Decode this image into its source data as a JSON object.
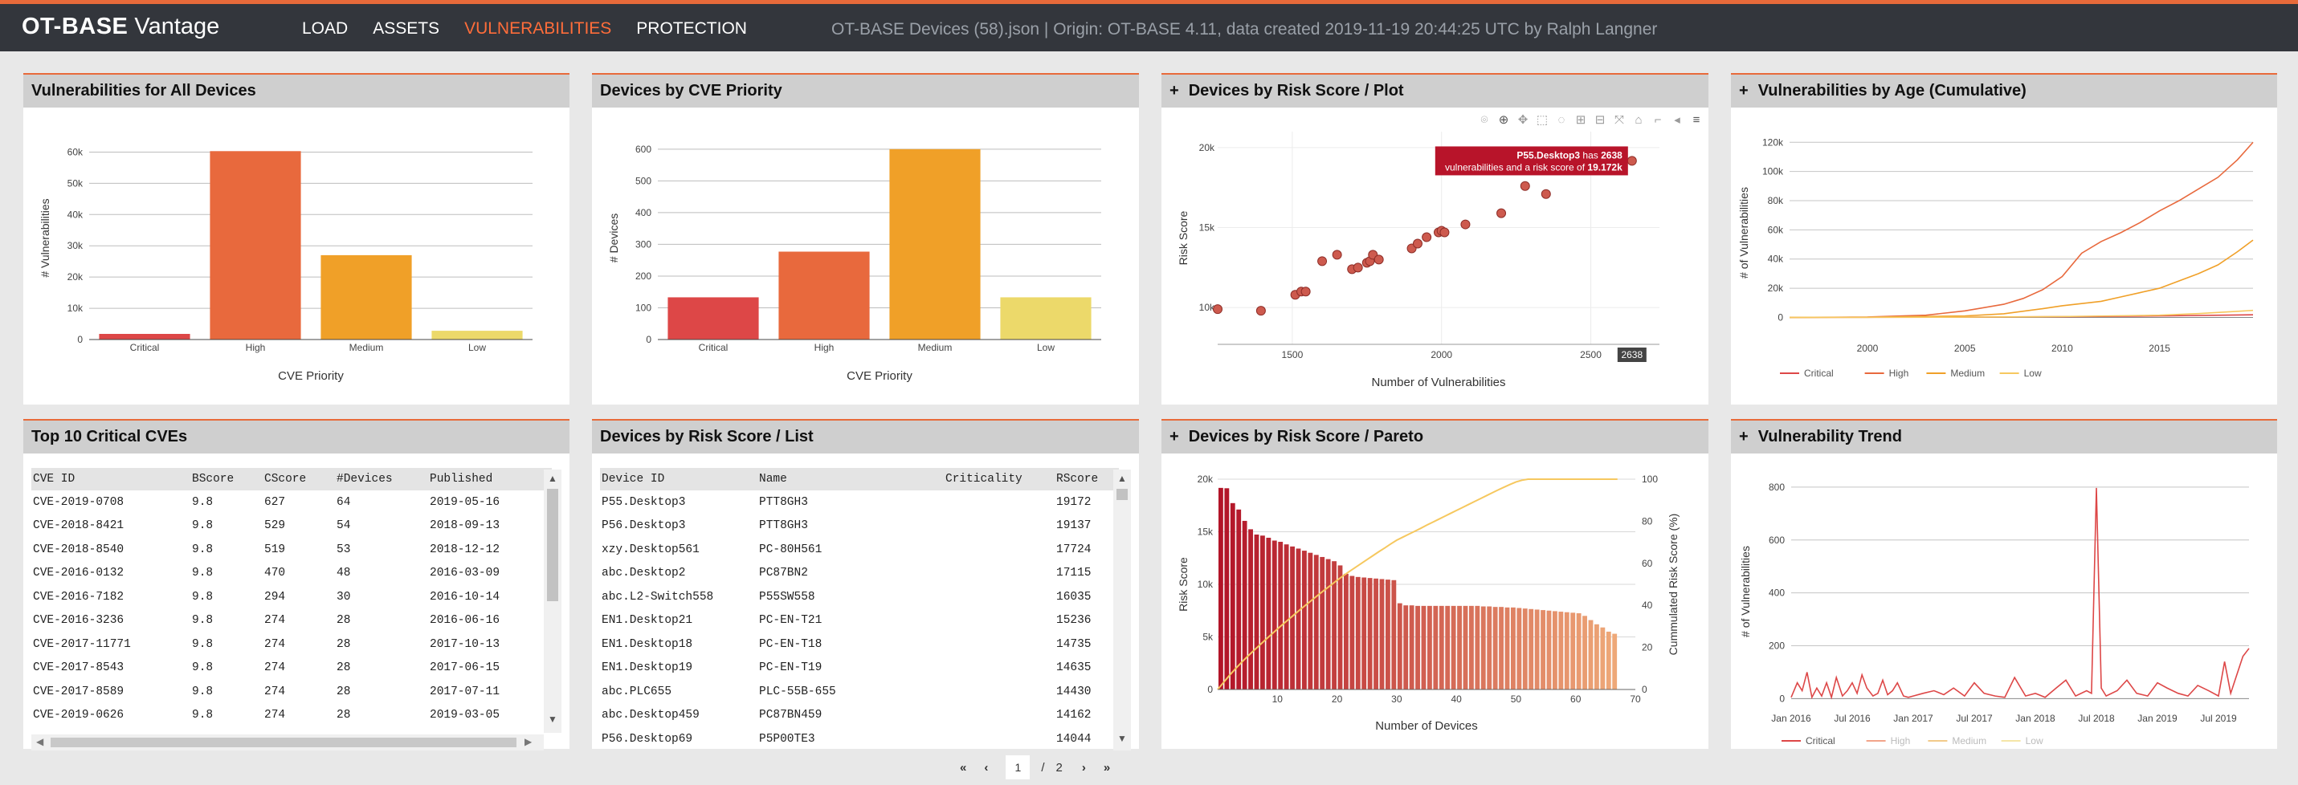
{
  "header": {
    "brand_bold": "OT-BASE",
    "brand_light": "Vantage",
    "nav": [
      {
        "label": "LOAD",
        "active": false
      },
      {
        "label": "ASSETS",
        "active": false
      },
      {
        "label": "VULNERABILITIES",
        "active": true
      },
      {
        "label": "PROTECTION",
        "active": false
      }
    ],
    "info": "OT-BASE Devices (58).json | Origin: OT-BASE 4.11, data created 2019-11-19 20:44:25 UTC by Ralph Langner"
  },
  "colors": {
    "accent": "#e86a3a",
    "critical": "#dd4747",
    "high": "#e8693d",
    "medium": "#f0a028",
    "low": "#ecd96a",
    "pareto_line": "#f6c85f"
  },
  "panels": {
    "vuln_all": {
      "title": "Vulnerabilities for All Devices",
      "chart_data": {
        "type": "bar",
        "categories": [
          "Critical",
          "High",
          "Medium",
          "Low"
        ],
        "values": [
          1800,
          60300,
          27000,
          2800
        ],
        "xlabel": "CVE Priority",
        "ylabel": "# Vulnerabilities",
        "ylim": [
          0,
          65000
        ],
        "yticks": [
          0,
          10000,
          20000,
          30000,
          40000,
          50000,
          60000
        ],
        "ytick_labels": [
          "0",
          "10k",
          "20k",
          "30k",
          "40k",
          "50k",
          "60k"
        ]
      }
    },
    "dev_cve": {
      "title": "Devices by CVE Priority",
      "chart_data": {
        "type": "bar",
        "categories": [
          "Critical",
          "High",
          "Medium",
          "Low"
        ],
        "values": [
          133,
          277,
          600,
          133
        ],
        "xlabel": "CVE Priority",
        "ylabel": "# Devices",
        "ylim": [
          0,
          640
        ],
        "yticks": [
          0,
          100,
          200,
          300,
          400,
          500,
          600
        ],
        "ytick_labels": [
          "0",
          "100",
          "200",
          "300",
          "400",
          "500",
          "600"
        ]
      }
    },
    "risk_plot": {
      "title": "Devices by Risk Score / Plot",
      "tooltip": {
        "device": "P55.Desktop3",
        "mid": "has",
        "count": "2638",
        "line2_pre": "vulnerabilities and a risk score of",
        "score": "19.172k",
        "x_label": "2638"
      },
      "chart_data": {
        "type": "scatter",
        "x": [
          1250,
          1395,
          1510,
          1530,
          1545,
          1600,
          1650,
          1700,
          1720,
          1750,
          1760,
          1770,
          1790,
          1900,
          1920,
          1950,
          1990,
          2000,
          2010,
          2080,
          2200,
          2280,
          2350,
          2638
        ],
        "y": [
          9900,
          9800,
          10800,
          11000,
          11000,
          12900,
          13300,
          12400,
          12500,
          12800,
          12900,
          13300,
          13000,
          13700,
          14000,
          14400,
          14700,
          14800,
          14700,
          15200,
          15900,
          17600,
          17100,
          19172
        ],
        "xlabel": "Number of Vulnerabilities",
        "ylabel": "Risk Score",
        "xlim": [
          1250,
          2730
        ],
        "ylim": [
          7700,
          21000
        ],
        "xticks": [
          1500,
          2000,
          2500
        ],
        "yticks": [
          10000,
          15000,
          20000
        ],
        "ytick_labels": [
          "10k",
          "15k",
          "20k"
        ]
      }
    },
    "vuln_age": {
      "title": "Vulnerabilities by Age (Cumulative)",
      "chart_data": {
        "type": "line",
        "xlabel": "",
        "ylabel": "# of Vulnerabilities",
        "xlim": [
          1996,
          2019.8
        ],
        "ylim": [
          -8000,
          124000
        ],
        "xticks": [
          2000,
          2005,
          2010,
          2015
        ],
        "yticks": [
          0,
          20000,
          40000,
          60000,
          80000,
          100000,
          120000
        ],
        "ytick_labels": [
          "0",
          "20k",
          "40k",
          "60k",
          "80k",
          "100k",
          "120k"
        ],
        "series": [
          {
            "name": "Critical",
            "x": [
              1996,
              2005,
              2010,
              2015,
              2019.8
            ],
            "y": [
              0,
              200,
              500,
              1000,
              1800
            ]
          },
          {
            "name": "High",
            "x": [
              1996,
              2000,
              2003,
              2005,
              2007,
              2008,
              2009,
              2010,
              2011,
              2012,
              2013,
              2014,
              2015,
              2016,
              2017,
              2018,
              2019,
              2019.8
            ],
            "y": [
              0,
              300,
              1500,
              4500,
              9000,
              13000,
              19000,
              28000,
              44000,
              52000,
              58000,
              65000,
              73000,
              80000,
              88000,
              96000,
              108000,
              120000
            ]
          },
          {
            "name": "Medium",
            "x": [
              1996,
              2000,
              2005,
              2007,
              2009,
              2010,
              2012,
              2013,
              2014,
              2015,
              2016,
              2017,
              2018,
              2019,
              2019.8
            ],
            "y": [
              0,
              100,
              1000,
              2500,
              6000,
              8000,
              11000,
              14000,
              17000,
              20000,
              25000,
              30000,
              36000,
              45000,
              53000
            ]
          },
          {
            "name": "Low",
            "x": [
              1996,
              2005,
              2010,
              2015,
              2017,
              2019.8
            ],
            "y": [
              0,
              200,
              600,
              1500,
              2600,
              4800
            ]
          }
        ],
        "legend_position": "bottom"
      }
    },
    "top_cves": {
      "title": "Top 10 Critical CVEs",
      "columns": [
        "CVE ID",
        "BScore",
        "CScore",
        "#Devices",
        "Published"
      ],
      "rows": [
        [
          "CVE-2019-0708",
          "9.8",
          "627",
          "64",
          "2019-05-16"
        ],
        [
          "CVE-2018-8421",
          "9.8",
          "529",
          "54",
          "2018-09-13"
        ],
        [
          "CVE-2018-8540",
          "9.8",
          "519",
          "53",
          "2018-12-12"
        ],
        [
          "CVE-2016-0132",
          "9.8",
          "470",
          "48",
          "2016-03-09"
        ],
        [
          "CVE-2016-7182",
          "9.8",
          "294",
          "30",
          "2016-10-14"
        ],
        [
          "CVE-2016-3236",
          "9.8",
          "274",
          "28",
          "2016-06-16"
        ],
        [
          "CVE-2017-11771",
          "9.8",
          "274",
          "28",
          "2017-10-13"
        ],
        [
          "CVE-2017-8543",
          "9.8",
          "274",
          "28",
          "2017-06-15"
        ],
        [
          "CVE-2017-8589",
          "9.8",
          "274",
          "28",
          "2017-07-11"
        ],
        [
          "CVE-2019-0626",
          "9.8",
          "274",
          "28",
          "2019-03-05"
        ]
      ]
    },
    "risk_list": {
      "title": "Devices by Risk Score / List",
      "columns": [
        "Device ID",
        "Name",
        "Criticality",
        "RScore"
      ],
      "rows": [
        [
          "P55.Desktop3",
          "PTT8GH3",
          "",
          "19172"
        ],
        [
          "P56.Desktop3",
          "PTT8GH3",
          "",
          "19137"
        ],
        [
          "xzy.Desktop561",
          "PC-80H561",
          "",
          "17724"
        ],
        [
          "abc.Desktop2",
          "PC87BN2",
          "",
          "17115"
        ],
        [
          "abc.L2-Switch558",
          "P55SW558",
          "",
          "16035"
        ],
        [
          "EN1.Desktop21",
          "PC-EN-T21",
          "",
          "15236"
        ],
        [
          "EN1.Desktop18",
          "PC-EN-T18",
          "",
          "14735"
        ],
        [
          "EN1.Desktop19",
          "PC-EN-T19",
          "",
          "14635"
        ],
        [
          "abc.PLC655",
          "PLC-55B-655",
          "",
          "14430"
        ],
        [
          "abc.Desktop459",
          "PC87BN459",
          "",
          "14162"
        ],
        [
          "P56.Desktop69",
          "P5P00TE3",
          "",
          "14044"
        ]
      ]
    },
    "pareto": {
      "title": "Devices by Risk Score / Pareto",
      "chart_data": {
        "type": "bar",
        "xlabel": "Number of Devices",
        "ylabel": "Risk Score",
        "y2label": "Cummulated Risk Score (%)",
        "xlim": [
          0,
          70
        ],
        "ylim": [
          0,
          20000
        ],
        "y2lim": [
          0,
          100
        ],
        "xticks": [
          10,
          20,
          30,
          40,
          50,
          60,
          70
        ],
        "yticks": [
          0,
          5000,
          10000,
          15000,
          20000
        ],
        "ytick_labels": [
          "0",
          "5k",
          "10k",
          "15k",
          "20k"
        ],
        "y2ticks": [
          0,
          20,
          40,
          60,
          80,
          100
        ],
        "values": [
          19172,
          19137,
          17724,
          17115,
          16035,
          15236,
          14735,
          14635,
          14430,
          14162,
          14044,
          13800,
          13600,
          13400,
          13200,
          13000,
          12800,
          12600,
          12400,
          12200,
          11800,
          11000,
          10800,
          10700,
          10650,
          10600,
          10550,
          10500,
          10450,
          10400,
          8200,
          8000,
          8000,
          7950,
          7950,
          7950,
          7950,
          7950,
          7950,
          7950,
          7950,
          7950,
          7950,
          7950,
          7900,
          7900,
          7850,
          7850,
          7800,
          7800,
          7750,
          7700,
          7650,
          7600,
          7550,
          7500,
          7450,
          7400,
          7350,
          7300,
          7250,
          7000,
          6600,
          6200,
          5900,
          5500,
          5300
        ],
        "cumulative_pct": [
          0,
          3.4,
          6.8,
          9.9,
          12.9,
          15.7,
          18.4,
          21.0,
          23.6,
          26.2,
          28.7,
          31.2,
          33.6,
          36.0,
          38.4,
          40.7,
          43.0,
          45.3,
          47.5,
          49.7,
          51.9,
          54.0,
          56.0,
          57.9,
          59.8,
          61.7,
          63.6,
          65.5,
          67.3,
          69.2,
          71.0,
          72.4,
          73.8,
          75.2,
          76.6,
          78.1,
          79.5,
          80.9,
          82.3,
          83.7,
          85.1,
          86.5,
          87.9,
          89.3,
          90.7,
          92.1,
          93.5,
          94.9,
          96.2,
          97.5,
          98.7,
          99.5,
          100,
          100,
          100,
          100,
          100,
          100,
          100,
          100,
          100,
          100,
          100,
          100,
          100,
          100,
          100,
          100
        ]
      }
    },
    "trend": {
      "title": "Vulnerability Trend",
      "chart_data": {
        "type": "line",
        "xlabel": "",
        "ylabel": "# of Vulnerabilities",
        "xlim": [
          2016.0,
          2019.75
        ],
        "ylim": [
          -20,
          830
        ],
        "xticks": [
          2016.0,
          2016.5,
          2017.0,
          2017.5,
          2018.0,
          2018.5,
          2019.0,
          2019.5
        ],
        "xtick_labels": [
          "Jan 2016",
          "Jul 2016",
          "Jan 2017",
          "Jul 2017",
          "Jan 2018",
          "Jul 2018",
          "Jan 2019",
          "Jul 2019"
        ],
        "yticks": [
          0,
          200,
          400,
          600,
          800
        ],
        "series": [
          {
            "name": "Critical",
            "x": [
              2016.0,
              2016.05,
              2016.09,
              2016.13,
              2016.17,
              2016.21,
              2016.25,
              2016.29,
              2016.33,
              2016.37,
              2016.42,
              2016.46,
              2016.5,
              2016.54,
              2016.58,
              2016.62,
              2016.67,
              2016.71,
              2016.75,
              2016.79,
              2016.83,
              2016.87,
              2016.92,
              2016.96,
              2017.0,
              2017.08,
              2017.17,
              2017.25,
              2017.33,
              2017.42,
              2017.5,
              2017.58,
              2017.67,
              2017.75,
              2017.83,
              2017.92,
              2018.0,
              2018.08,
              2018.17,
              2018.25,
              2018.33,
              2018.42,
              2018.46,
              2018.5,
              2018.54,
              2018.58,
              2018.67,
              2018.75,
              2018.83,
              2018.92,
              2019.0,
              2019.08,
              2019.17,
              2019.25,
              2019.33,
              2019.42,
              2019.5,
              2019.55,
              2019.6,
              2019.65,
              2019.7,
              2019.75
            ],
            "y": [
              5,
              60,
              30,
              100,
              5,
              40,
              10,
              60,
              5,
              80,
              10,
              30,
              60,
              20,
              90,
              40,
              10,
              20,
              70,
              15,
              30,
              60,
              10,
              5,
              10,
              20,
              30,
              15,
              40,
              10,
              60,
              20,
              10,
              5,
              80,
              10,
              20,
              5,
              40,
              70,
              10,
              30,
              20,
              797,
              40,
              10,
              30,
              70,
              20,
              10,
              60,
              40,
              20,
              10,
              50,
              30,
              10,
              140,
              20,
              90,
              160,
              190
            ]
          }
        ],
        "legend": [
          "Critical",
          "High",
          "Medium",
          "Low"
        ],
        "legend_position": "bottom"
      }
    }
  },
  "pager": {
    "first": "«",
    "prev": "‹",
    "current": "1",
    "sep": "/",
    "total": "2",
    "next": "›",
    "last": "»"
  },
  "scroll": {
    "up": "▲",
    "down": "▼",
    "left": "◀",
    "right": "▶"
  }
}
